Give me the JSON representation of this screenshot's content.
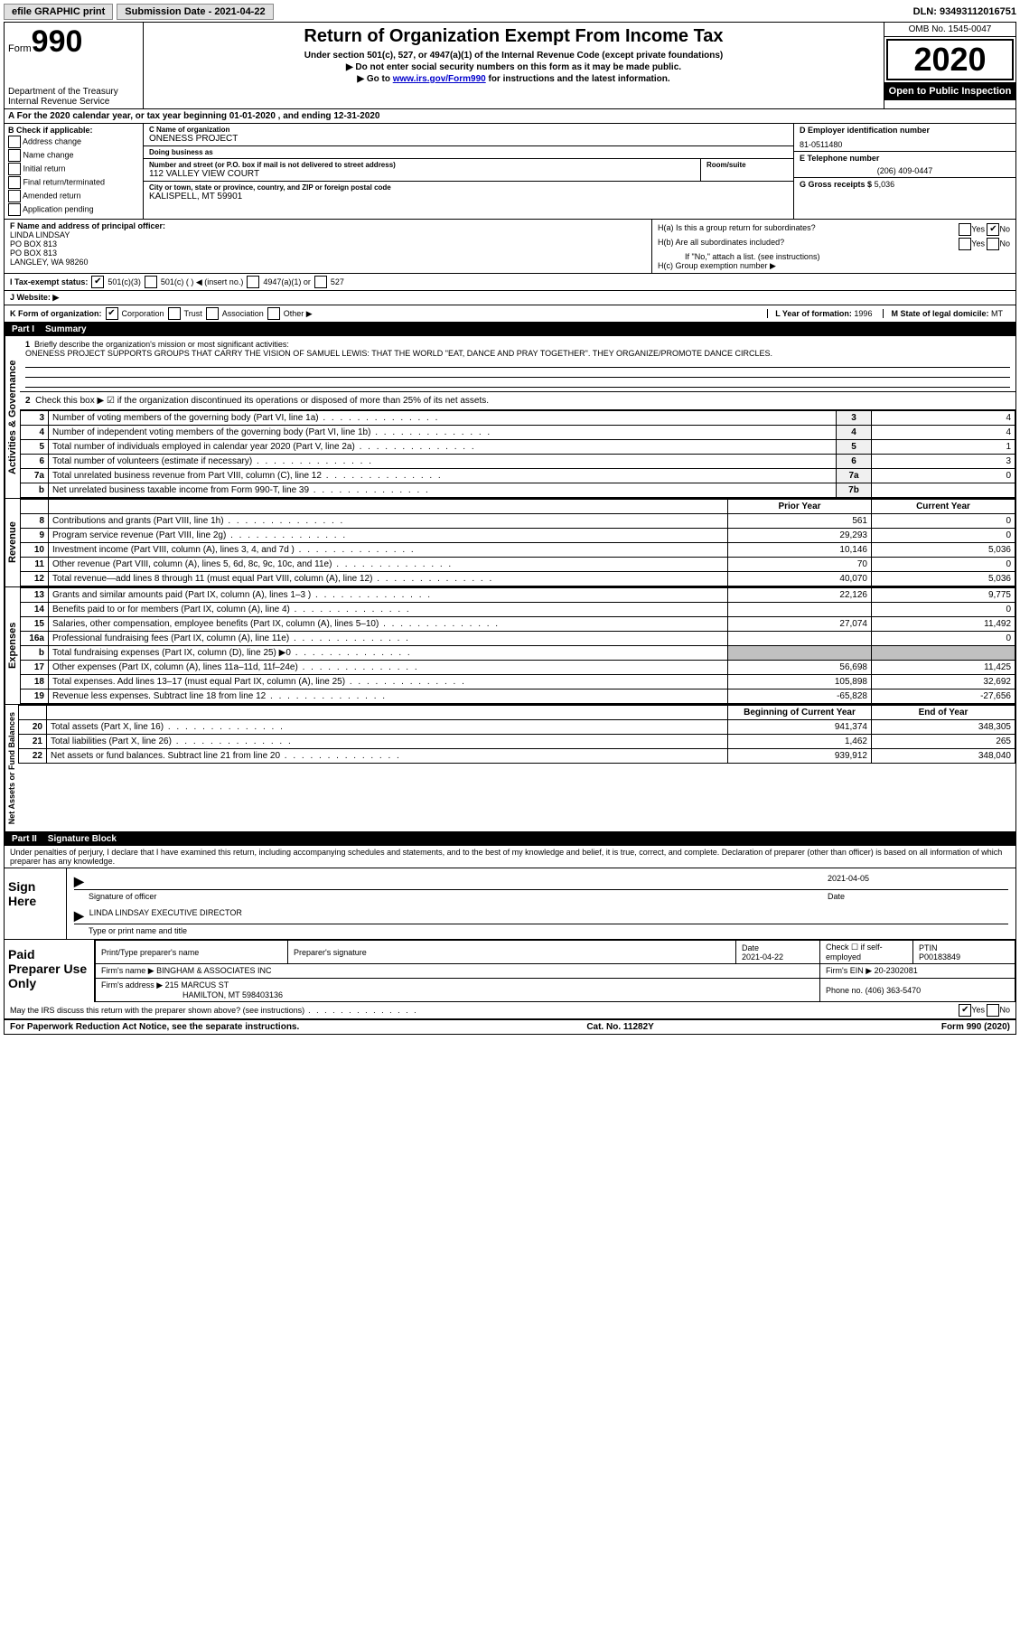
{
  "top": {
    "efile": "efile GRAPHIC print",
    "submission": "Submission Date - 2021-04-22",
    "dln": "DLN: 93493112016751"
  },
  "header": {
    "form_small": "Form",
    "form_num": "990",
    "dept": "Department of the Treasury\nInternal Revenue Service",
    "title": "Return of Organization Exempt From Income Tax",
    "subtitle": "Under section 501(c), 527, or 4947(a)(1) of the Internal Revenue Code (except private foundations)",
    "ssn": "▶ Do not enter social security numbers on this form as it may be made public.",
    "goto_pre": "▶ Go to ",
    "goto_link": "www.irs.gov/Form990",
    "goto_post": " for instructions and the latest information.",
    "omb": "OMB No. 1545-0047",
    "year": "2020",
    "open": "Open to Public Inspection"
  },
  "A": {
    "text": "A For the 2020 calendar year, or tax year beginning 01-01-2020    , and ending 12-31-2020"
  },
  "B": {
    "header": "B Check if applicable:",
    "opts": [
      "Address change",
      "Name change",
      "Initial return",
      "Final return/terminated",
      "Amended return",
      "Application pending"
    ]
  },
  "C": {
    "name_lbl": "C Name of organization",
    "name": "ONENESS PROJECT",
    "dba_lbl": "Doing business as",
    "dba": "",
    "street_lbl": "Number and street (or P.O. box if mail is not delivered to street address)",
    "room_lbl": "Room/suite",
    "street": "112 VALLEY VIEW COURT",
    "city_lbl": "City or town, state or province, country, and ZIP or foreign postal code",
    "city": "KALISPELL, MT  59901"
  },
  "D": {
    "ein_lbl": "D Employer identification number",
    "ein": "81-0511480",
    "phone_lbl": "E Telephone number",
    "phone": "(206) 409-0447",
    "gross_lbl": "G Gross receipts $",
    "gross": "5,036"
  },
  "F": {
    "lbl": "F  Name and address of principal officer:",
    "name": "LINDA LINDSAY",
    "a1": "PO BOX 813",
    "a2": "PO BOX 813",
    "a3": "LANGLEY, WA  98260"
  },
  "H": {
    "a": "H(a)  Is this a group return for subordinates?",
    "b": "H(b)  Are all subordinates included?",
    "b2": "If \"No,\" attach a list. (see instructions)",
    "c": "H(c)  Group exemption number ▶"
  },
  "I": {
    "lbl": "I  Tax-exempt status:",
    "o1": "501(c)(3)",
    "o2": "501(c) (   ) ◀ (insert no.)",
    "o3": "4947(a)(1) or",
    "o4": "527"
  },
  "J": {
    "lbl": "J  Website: ▶"
  },
  "K": {
    "lbl": "K Form of organization:",
    "o1": "Corporation",
    "o2": "Trust",
    "o3": "Association",
    "o4": "Other ▶"
  },
  "L": {
    "lbl": "L Year of formation:",
    "val": "1996"
  },
  "M": {
    "lbl": "M State of legal domicile:",
    "val": "MT"
  },
  "partI": {
    "title": "Part I",
    "name": "Summary",
    "l1": "Briefly describe the organization's mission or most significant activities:",
    "mission": "ONENESS PROJECT SUPPORTS GROUPS THAT CARRY THE VISION OF SAMUEL LEWIS: THAT THE WORLD \"EAT, DANCE AND PRAY TOGETHER\". THEY ORGANIZE/PROMOTE DANCE CIRCLES.",
    "l2": "Check this box ▶ ☑ if the organization discontinued its operations or disposed of more than 25% of its net assets.",
    "tabs": {
      "gov": "Activities & Governance",
      "rev": "Revenue",
      "exp": "Expenses",
      "net": "Net Assets or Fund Balances"
    },
    "rows_single": [
      {
        "n": "3",
        "d": "Number of voting members of the governing body (Part VI, line 1a)",
        "b": "3",
        "v": "4"
      },
      {
        "n": "4",
        "d": "Number of independent voting members of the governing body (Part VI, line 1b)",
        "b": "4",
        "v": "4"
      },
      {
        "n": "5",
        "d": "Total number of individuals employed in calendar year 2020 (Part V, line 2a)",
        "b": "5",
        "v": "1"
      },
      {
        "n": "6",
        "d": "Total number of volunteers (estimate if necessary)",
        "b": "6",
        "v": "3"
      },
      {
        "n": "7a",
        "d": "Total unrelated business revenue from Part VIII, column (C), line 12",
        "b": "7a",
        "v": "0"
      },
      {
        "n": "b",
        "d": "Net unrelated business taxable income from Form 990-T, line 39",
        "b": "7b",
        "v": ""
      }
    ],
    "col_hdr": {
      "prior": "Prior Year",
      "current": "Current Year"
    },
    "rows_rev": [
      {
        "n": "8",
        "d": "Contributions and grants (Part VIII, line 1h)",
        "p": "561",
        "c": "0"
      },
      {
        "n": "9",
        "d": "Program service revenue (Part VIII, line 2g)",
        "p": "29,293",
        "c": "0"
      },
      {
        "n": "10",
        "d": "Investment income (Part VIII, column (A), lines 3, 4, and 7d )",
        "p": "10,146",
        "c": "5,036"
      },
      {
        "n": "11",
        "d": "Other revenue (Part VIII, column (A), lines 5, 6d, 8c, 9c, 10c, and 11e)",
        "p": "70",
        "c": "0"
      },
      {
        "n": "12",
        "d": "Total revenue—add lines 8 through 11 (must equal Part VIII, column (A), line 12)",
        "p": "40,070",
        "c": "5,036"
      }
    ],
    "rows_exp": [
      {
        "n": "13",
        "d": "Grants and similar amounts paid (Part IX, column (A), lines 1–3 )",
        "p": "22,126",
        "c": "9,775"
      },
      {
        "n": "14",
        "d": "Benefits paid to or for members (Part IX, column (A), line 4)",
        "p": "",
        "c": "0"
      },
      {
        "n": "15",
        "d": "Salaries, other compensation, employee benefits (Part IX, column (A), lines 5–10)",
        "p": "27,074",
        "c": "11,492"
      },
      {
        "n": "16a",
        "d": "Professional fundraising fees (Part IX, column (A), line 11e)",
        "p": "",
        "c": "0"
      },
      {
        "n": "b",
        "d": "Total fundraising expenses (Part IX, column (D), line 25) ▶0",
        "p": "grey",
        "c": "grey"
      },
      {
        "n": "17",
        "d": "Other expenses (Part IX, column (A), lines 11a–11d, 11f–24e)",
        "p": "56,698",
        "c": "11,425"
      },
      {
        "n": "18",
        "d": "Total expenses. Add lines 13–17 (must equal Part IX, column (A), line 25)",
        "p": "105,898",
        "c": "32,692"
      },
      {
        "n": "19",
        "d": "Revenue less expenses. Subtract line 18 from line 12",
        "p": "-65,828",
        "c": "-27,656"
      }
    ],
    "col_hdr2": {
      "prior": "Beginning of Current Year",
      "current": "End of Year"
    },
    "rows_net": [
      {
        "n": "20",
        "d": "Total assets (Part X, line 16)",
        "p": "941,374",
        "c": "348,305"
      },
      {
        "n": "21",
        "d": "Total liabilities (Part X, line 26)",
        "p": "1,462",
        "c": "265"
      },
      {
        "n": "22",
        "d": "Net assets or fund balances. Subtract line 21 from line 20",
        "p": "939,912",
        "c": "348,040"
      }
    ]
  },
  "partII": {
    "title": "Part II",
    "name": "Signature Block",
    "perjury": "Under penalties of perjury, I declare that I have examined this return, including accompanying schedules and statements, and to the best of my knowledge and belief, it is true, correct, and complete. Declaration of preparer (other than officer) is based on all information of which preparer has any knowledge.",
    "sign_here": "Sign Here",
    "sig_of_officer": "Signature of officer",
    "date": "Date",
    "sig_date": "2021-04-05",
    "officer": "LINDA LINDSAY EXECUTIVE DIRECTOR",
    "type_name": "Type or print name and title",
    "paid": "Paid Preparer Use Only",
    "prep_name_lbl": "Print/Type preparer's name",
    "prep_sig_lbl": "Preparer's signature",
    "prep_date_lbl": "Date",
    "prep_date": "2021-04-22",
    "check_if": "Check ☐ if self-employed",
    "ptin_lbl": "PTIN",
    "ptin": "P00183849",
    "firm_name_lbl": "Firm's name    ▶",
    "firm_name": "BINGHAM & ASSOCIATES INC",
    "firm_ein_lbl": "Firm's EIN ▶",
    "firm_ein": "20-2302081",
    "firm_addr_lbl": "Firm's address ▶",
    "firm_addr": "215 MARCUS ST",
    "firm_addr2": "HAMILTON, MT  598403136",
    "firm_phone_lbl": "Phone no.",
    "firm_phone": "(406) 363-5470",
    "discuss": "May the IRS discuss this return with the preparer shown above? (see instructions)",
    "paperwork": "For Paperwork Reduction Act Notice, see the separate instructions.",
    "cat": "Cat. No. 11282Y",
    "formfoot": "Form 990 (2020)"
  }
}
